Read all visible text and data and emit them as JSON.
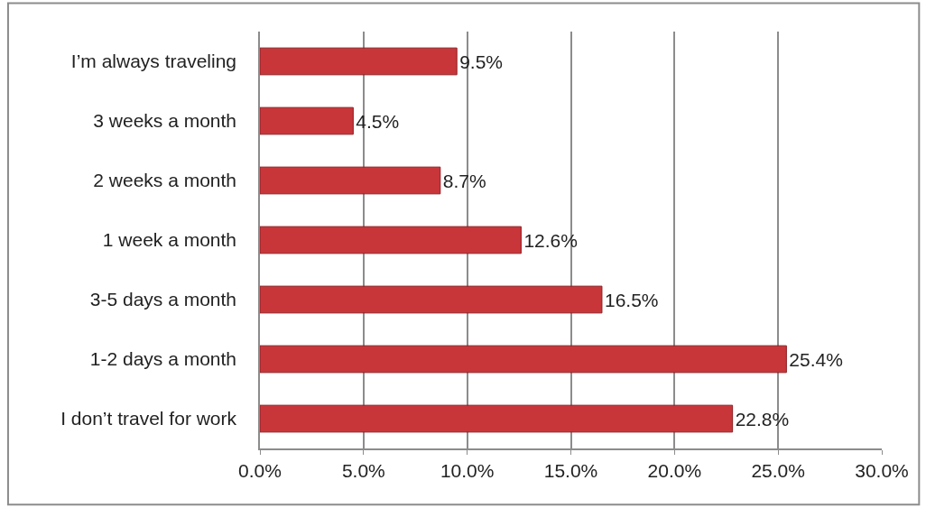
{
  "chart_data": {
    "type": "bar",
    "orientation": "horizontal",
    "categories": [
      "I’m always traveling",
      "3 weeks a month",
      "2 weeks a month",
      "1 week a month",
      "3-5 days a month",
      "1-2 days a month",
      "I don’t travel for work"
    ],
    "values": [
      9.5,
      4.5,
      8.7,
      12.6,
      16.5,
      25.4,
      22.8
    ],
    "value_labels": [
      "9.5%",
      "4.5%",
      "8.7%",
      "12.6%",
      "16.5%",
      "25.4%",
      "22.8%"
    ],
    "color": "#c8363a",
    "xlim": [
      0,
      30
    ],
    "xticks": [
      {
        "value": 0,
        "label": "0.0%"
      },
      {
        "value": 5,
        "label": "5.0%"
      },
      {
        "value": 10,
        "label": "10.0%"
      },
      {
        "value": 15,
        "label": "15.0%"
      },
      {
        "value": 20,
        "label": "20.0%"
      },
      {
        "value": 25,
        "label": "25.0%"
      },
      {
        "value": 30,
        "label": "30.0%"
      }
    ],
    "grid": "x"
  }
}
